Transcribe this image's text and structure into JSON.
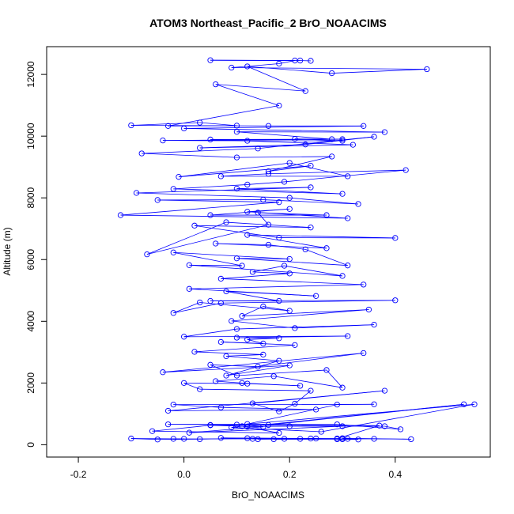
{
  "chart_data": {
    "type": "line",
    "title": "ATOM3 Northeast_Pacific_2 BrO_NOAACIMS",
    "xlabel": "BrO_NOAACIMS",
    "ylabel": "Altitude (m)",
    "xlim": [
      -0.26,
      0.58
    ],
    "ylim": [
      -400,
      12900
    ],
    "xticks": [
      -0.2,
      0.0,
      0.2,
      0.4
    ],
    "xtick_labels": [
      "-0.2",
      "0.0",
      "0.2",
      "0.4"
    ],
    "yticks": [
      0,
      2000,
      4000,
      6000,
      8000,
      10000,
      12000
    ],
    "ytick_labels": [
      "0",
      "2000",
      "4000",
      "6000",
      "8000",
      "10000",
      "12000"
    ],
    "grid": false,
    "legend": "none",
    "marker": "open-circle",
    "color": "#0000ff",
    "series": [
      {
        "points": [
          [
            0.29,
            180
          ],
          [
            0.33,
            170
          ],
          [
            0.3,
            210
          ],
          [
            0.43,
            180
          ],
          [
            0.36,
            190
          ],
          [
            0.14,
            180
          ],
          [
            0.19,
            190
          ],
          [
            0.24,
            200
          ],
          [
            0.3,
            180
          ],
          [
            0.17,
            180
          ],
          [
            0.31,
            190
          ],
          [
            -0.02,
            190
          ],
          [
            0.0,
            190
          ],
          [
            -0.1,
            200
          ],
          [
            -0.05,
            170
          ],
          [
            0.03,
            180
          ],
          [
            0.12,
            210
          ],
          [
            0.25,
            200
          ],
          [
            0.13,
            190
          ],
          [
            0.22,
            190
          ],
          [
            0.07,
            220
          ],
          [
            0.29,
            200
          ],
          [
            0.37,
            620
          ],
          [
            0.05,
            640
          ],
          [
            0.16,
            640
          ],
          [
            0.53,
            1310
          ],
          [
            0.12,
            590
          ],
          [
            0.2,
            600
          ],
          [
            0.38,
            600
          ],
          [
            0.41,
            500
          ],
          [
            0.29,
            660
          ],
          [
            -0.03,
            660
          ],
          [
            0.1,
            650
          ],
          [
            0.3,
            600
          ],
          [
            0.01,
            390
          ],
          [
            0.15,
            580
          ],
          [
            0.05,
            630
          ],
          [
            -0.06,
            440
          ],
          [
            0.18,
            380
          ],
          [
            0.11,
            600
          ],
          [
            0.09,
            560
          ],
          [
            0.26,
            420
          ],
          [
            0.55,
            1310
          ],
          [
            0.12,
            670
          ],
          [
            0.29,
            1300
          ],
          [
            0.36,
            1310
          ],
          [
            -0.02,
            1300
          ],
          [
            0.07,
            1210
          ],
          [
            0.25,
            1140
          ],
          [
            -0.03,
            1100
          ],
          [
            0.38,
            1750
          ],
          [
            0.13,
            1340
          ],
          [
            0.18,
            1080
          ],
          [
            0.21,
            1330
          ],
          [
            0.24,
            1750
          ],
          [
            0.03,
            1800
          ],
          [
            0.0,
            2000
          ],
          [
            0.12,
            1980
          ],
          [
            0.22,
            1910
          ],
          [
            0.11,
            2000
          ],
          [
            0.06,
            2060
          ],
          [
            0.17,
            2220
          ],
          [
            0.3,
            1850
          ],
          [
            0.27,
            2420
          ],
          [
            0.1,
            2240
          ],
          [
            0.05,
            2590
          ],
          [
            0.14,
            2530
          ],
          [
            0.34,
            2970
          ],
          [
            -0.04,
            2350
          ],
          [
            0.2,
            2570
          ],
          [
            0.08,
            2240
          ],
          [
            0.18,
            2720
          ],
          [
            0.08,
            2870
          ],
          [
            0.15,
            2920
          ],
          [
            0.02,
            3010
          ],
          [
            0.21,
            3230
          ],
          [
            0.07,
            3330
          ],
          [
            0.15,
            3280
          ],
          [
            0.12,
            3410
          ],
          [
            0.18,
            3450
          ],
          [
            0.1,
            3470
          ],
          [
            0.31,
            3520
          ],
          [
            0.0,
            3500
          ],
          [
            0.1,
            3750
          ],
          [
            0.36,
            3890
          ],
          [
            0.21,
            3780
          ],
          [
            0.09,
            4010
          ],
          [
            0.35,
            4380
          ],
          [
            0.11,
            4170
          ],
          [
            0.15,
            4480
          ],
          [
            0.2,
            4340
          ],
          [
            0.03,
            4610
          ],
          [
            -0.02,
            4270
          ],
          [
            0.07,
            4590
          ],
          [
            0.4,
            4680
          ],
          [
            0.05,
            4660
          ],
          [
            0.18,
            4660
          ],
          [
            0.08,
            4970
          ],
          [
            0.25,
            4820
          ],
          [
            0.01,
            5050
          ],
          [
            0.34,
            5190
          ],
          [
            0.07,
            5380
          ],
          [
            0.2,
            5550
          ],
          [
            0.13,
            5600
          ],
          [
            0.19,
            5800
          ],
          [
            0.3,
            5470
          ],
          [
            0.01,
            5820
          ],
          [
            0.11,
            5800
          ],
          [
            -0.02,
            6230
          ],
          [
            0.2,
            6020
          ],
          [
            0.1,
            6040
          ],
          [
            0.31,
            5810
          ],
          [
            0.23,
            6330
          ],
          [
            0.16,
            6480
          ],
          [
            0.06,
            6520
          ],
          [
            0.27,
            6370
          ],
          [
            0.12,
            6800
          ],
          [
            0.4,
            6700
          ],
          [
            0.18,
            6710
          ],
          [
            0.02,
            7100
          ],
          [
            0.24,
            7040
          ],
          [
            0.08,
            7210
          ],
          [
            -0.07,
            6170
          ],
          [
            0.16,
            7130
          ],
          [
            0.14,
            7520
          ],
          [
            0.27,
            7440
          ],
          [
            0.05,
            7440
          ],
          [
            0.2,
            7640
          ],
          [
            0.12,
            7550
          ],
          [
            0.31,
            7340
          ],
          [
            -0.12,
            7440
          ],
          [
            0.18,
            7860
          ],
          [
            -0.05,
            7930
          ],
          [
            0.15,
            7940
          ],
          [
            0.33,
            7800
          ],
          [
            0.2,
            8000
          ],
          [
            -0.09,
            8160
          ],
          [
            0.24,
            8340
          ],
          [
            0.1,
            8300
          ],
          [
            0.3,
            8130
          ],
          [
            -0.02,
            8290
          ],
          [
            0.12,
            8430
          ],
          [
            0.19,
            8520
          ],
          [
            0.42,
            8900
          ],
          [
            0.16,
            8780
          ],
          [
            0.07,
            8700
          ],
          [
            0.31,
            8700
          ],
          [
            0.2,
            9130
          ],
          [
            -0.01,
            8680
          ],
          [
            0.24,
            9040
          ],
          [
            0.16,
            8860
          ],
          [
            0.28,
            9340
          ],
          [
            0.1,
            9310
          ],
          [
            -0.08,
            9440
          ],
          [
            0.14,
            9600
          ],
          [
            0.36,
            9980
          ],
          [
            0.23,
            9730
          ],
          [
            0.03,
            9620
          ],
          [
            0.32,
            9720
          ],
          [
            0.05,
            9890
          ],
          [
            0.3,
            9900
          ],
          [
            -0.04,
            9860
          ],
          [
            0.12,
            9850
          ],
          [
            0.3,
            9850
          ],
          [
            0.21,
            9910
          ],
          [
            0.28,
            9900
          ],
          [
            0.1,
            10140
          ],
          [
            0.38,
            10130
          ],
          [
            0.0,
            10250
          ],
          [
            0.34,
            10330
          ],
          [
            0.16,
            10330
          ],
          [
            -0.1,
            10350
          ],
          [
            0.03,
            10440
          ],
          [
            0.1,
            10340
          ],
          [
            -0.03,
            10330
          ],
          [
            0.18,
            10990
          ],
          [
            0.06,
            11680
          ],
          [
            0.23,
            11460
          ],
          [
            0.12,
            12260
          ],
          [
            0.28,
            12040
          ],
          [
            0.46,
            12170
          ],
          [
            0.09,
            12220
          ],
          [
            0.18,
            12350
          ],
          [
            0.21,
            12450
          ],
          [
            0.05,
            12460
          ],
          [
            0.22,
            12450
          ],
          [
            0.24,
            12440
          ]
        ]
      }
    ]
  }
}
